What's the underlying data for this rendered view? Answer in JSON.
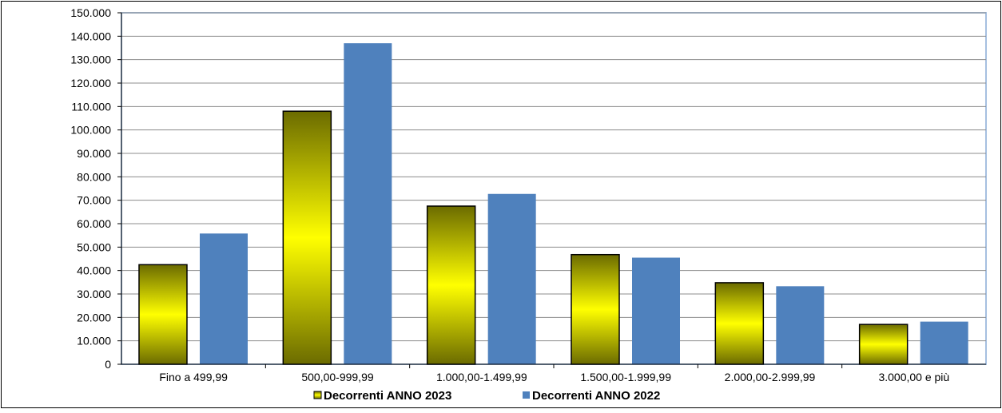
{
  "chart_data": {
    "type": "bar",
    "title": "",
    "xlabel": "",
    "ylabel": "",
    "categories": [
      "Fino a 499,99",
      "500,00-999,99",
      "1.000,00-1.499,99",
      "1.500,00-1.999,99",
      "2.000,00-2.999,99",
      "3.000,00 e più"
    ],
    "series": [
      {
        "name": "Decorrenti ANNO 2023",
        "values": [
          42500,
          108000,
          67500,
          46800,
          34800,
          17000
        ],
        "color": "#ffff00",
        "style": "gradient"
      },
      {
        "name": "Decorrenti ANNO 2022",
        "values": [
          55800,
          137000,
          72700,
          45500,
          33300,
          18200
        ],
        "color": "#4f81bd",
        "style": "solid"
      }
    ],
    "ylim": [
      0,
      150000
    ],
    "ytick_labels": [
      "0",
      "10.000",
      "20.000",
      "30.000",
      "40.000",
      "50.000",
      "60.000",
      "70.000",
      "80.000",
      "90.000",
      "100.000",
      "110.000",
      "120.000",
      "130.000",
      "140.000",
      "150.000"
    ],
    "grid": true,
    "legend_position": "bottom"
  }
}
